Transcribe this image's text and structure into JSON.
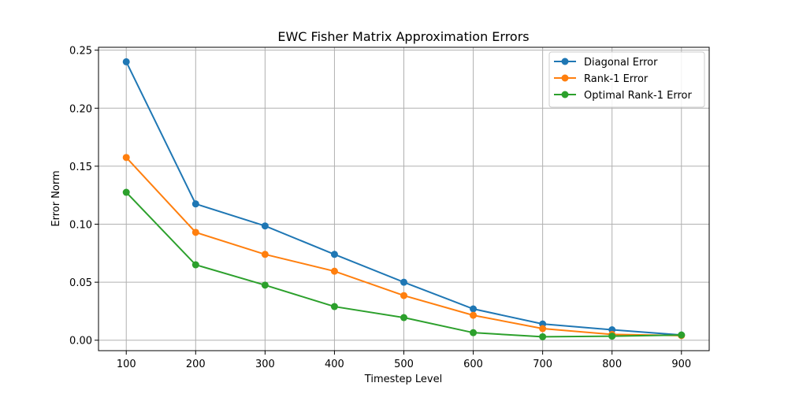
{
  "chart_data": {
    "type": "line",
    "title": "EWC Fisher Matrix Approximation Errors",
    "xlabel": "Timestep Level",
    "ylabel": "Error Norm",
    "x": [
      100,
      200,
      300,
      400,
      500,
      600,
      700,
      800,
      900
    ],
    "xticks": [
      "100",
      "200",
      "300",
      "400",
      "500",
      "600",
      "700",
      "800",
      "900"
    ],
    "xlim": [
      60,
      940
    ],
    "yticks": [
      "0.00",
      "0.05",
      "0.10",
      "0.15",
      "0.20",
      "0.25"
    ],
    "ytick_values": [
      0,
      0.05,
      0.1,
      0.15,
      0.2,
      0.25
    ],
    "ylim": [
      -0.009,
      0.2525
    ],
    "grid": true,
    "legend_position": "top-right",
    "series": [
      {
        "name": "Diagonal Error",
        "color": "#1f77b4",
        "values": [
          0.24,
          0.1175,
          0.0985,
          0.074,
          0.05,
          0.027,
          0.014,
          0.009,
          0.0045
        ]
      },
      {
        "name": "Rank-1 Error",
        "color": "#ff7f0e",
        "values": [
          0.1575,
          0.093,
          0.074,
          0.0595,
          0.0385,
          0.0215,
          0.01,
          0.005,
          0.004
        ]
      },
      {
        "name": "Optimal Rank-1 Error",
        "color": "#2ca02c",
        "values": [
          0.1275,
          0.065,
          0.0475,
          0.029,
          0.0195,
          0.0065,
          0.003,
          0.0035,
          0.0045
        ]
      }
    ]
  }
}
